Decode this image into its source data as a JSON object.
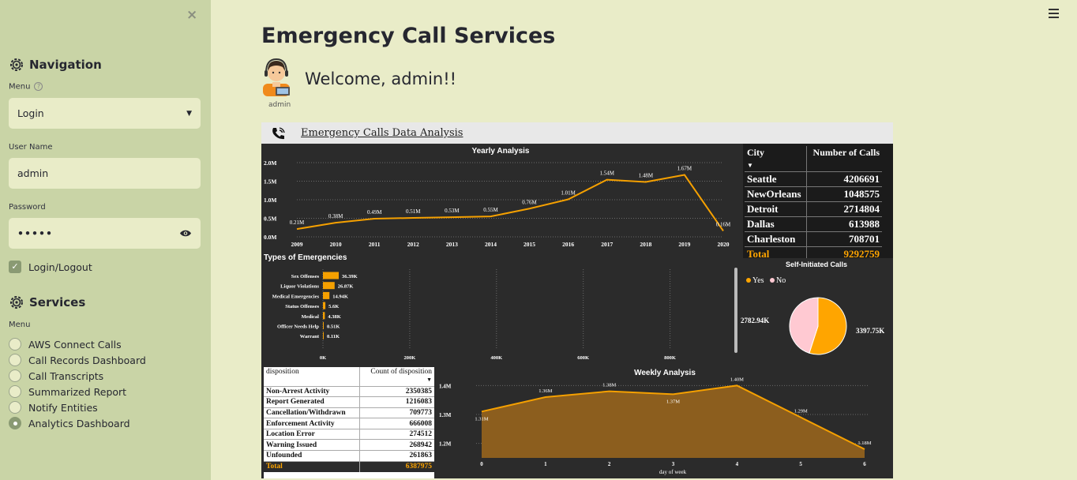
{
  "sidebar": {
    "close_label": "×",
    "navigation_title": "Navigation",
    "menu_label": "Menu",
    "menu_value": "Login",
    "username_label": "User Name",
    "username_value": "admin",
    "password_label": "Password",
    "password_value": "•••••",
    "login_checkbox_label": "Login/Logout",
    "services_title": "Services",
    "services_menu_label": "Menu",
    "services": [
      {
        "label": "AWS Connect Calls",
        "selected": false
      },
      {
        "label": "Call Records Dashboard",
        "selected": false
      },
      {
        "label": "Call Transcripts",
        "selected": false
      },
      {
        "label": "Summarized Report",
        "selected": false
      },
      {
        "label": "Notify Entities",
        "selected": false
      },
      {
        "label": "Analytics Dashboard",
        "selected": true
      }
    ]
  },
  "main": {
    "title": "Emergency Call Services",
    "welcome": "Welcome, admin!!",
    "avatar_caption": "admin"
  },
  "report": {
    "header": "Emergency Calls Data Analysis",
    "city_table": {
      "headers": [
        "City",
        "Number of Calls"
      ],
      "rows": [
        [
          "Seattle",
          "4206691"
        ],
        [
          "NewOrleans",
          "1048575"
        ],
        [
          "Detroit",
          "2714804"
        ],
        [
          "Dallas",
          "613988"
        ],
        [
          "Charleston",
          "708701"
        ]
      ],
      "total": [
        "Total",
        "9292759"
      ]
    },
    "disposition_table": {
      "headers": [
        "disposition",
        "Count of disposition"
      ],
      "rows": [
        [
          "Non-Arrest Activity",
          "2350385"
        ],
        [
          "Report Generated",
          "1216083"
        ],
        [
          "Cancellation/Withdrawn",
          "709773"
        ],
        [
          "Enforcement Activity",
          "666008"
        ],
        [
          "Location Error",
          "274512"
        ],
        [
          "Warning Issued",
          "268942"
        ],
        [
          "Unfounded",
          "261863"
        ]
      ],
      "total": [
        "Total",
        "6387975"
      ]
    }
  },
  "chart_data": [
    {
      "type": "line",
      "title": "Yearly Analysis",
      "x": [
        "2009",
        "2010",
        "2011",
        "2012",
        "2013",
        "2014",
        "2015",
        "2016",
        "2017",
        "2018",
        "2019",
        "2020"
      ],
      "values": [
        0.21,
        0.38,
        0.49,
        0.51,
        0.53,
        0.55,
        0.76,
        1.01,
        1.54,
        1.48,
        1.67,
        0.16
      ],
      "data_labels": [
        "0.21M",
        "0.38M",
        "0.49M",
        "0.51M",
        "0.53M",
        "0.55M",
        "0.76M",
        "1.01M",
        "1.54M",
        "1.48M",
        "1.67M",
        "0.16M"
      ],
      "yticks": [
        "0.0M",
        "0.5M",
        "1.0M",
        "1.5M",
        "2.0M"
      ],
      "ylim": [
        0,
        2.0
      ],
      "color": "#f5a000",
      "grid": true
    },
    {
      "type": "bar",
      "orientation": "horizontal",
      "title": "Types of Emergencies",
      "categories": [
        "Sex Offenses",
        "Liquor Violations",
        "Medical Emergencies",
        "Status Offenses",
        "Medical",
        "Officer Needs Help",
        "Warrant"
      ],
      "values": [
        36.39,
        26.87,
        14.94,
        5.6,
        4.38,
        0.51,
        0.11
      ],
      "data_labels": [
        "36.39K",
        "26.87K",
        "14.94K",
        "5.6K",
        "4.38K",
        "0.51K",
        "0.11K"
      ],
      "xticks": [
        "0K",
        "200K",
        "400K",
        "600K",
        "800K"
      ],
      "xlim": [
        0,
        950
      ],
      "color": "#f5a000"
    },
    {
      "type": "pie",
      "title": "Self-Initiated Calls",
      "legend": [
        "Yes",
        "No"
      ],
      "values": [
        3397.75,
        2782.94
      ],
      "data_labels": [
        "3397.75K",
        "2782.94K"
      ],
      "colors": [
        "#ffa500",
        "#ffc9d2"
      ]
    },
    {
      "type": "area",
      "title": "Weekly Analysis",
      "xlabel": "day of week",
      "x": [
        "0",
        "1",
        "2",
        "3",
        "4",
        "5",
        "6"
      ],
      "values": [
        1.31,
        1.36,
        1.38,
        1.37,
        1.4,
        1.29,
        1.18
      ],
      "data_labels": [
        "1.31M",
        "1.36M",
        "1.38M",
        "1.37M",
        "1.40M",
        "1.29M",
        "1.18M"
      ],
      "yticks": [
        "1.2M",
        "1.3M",
        "1.4M"
      ],
      "ylim": [
        1.15,
        1.42
      ],
      "color": "#f5a000"
    }
  ]
}
